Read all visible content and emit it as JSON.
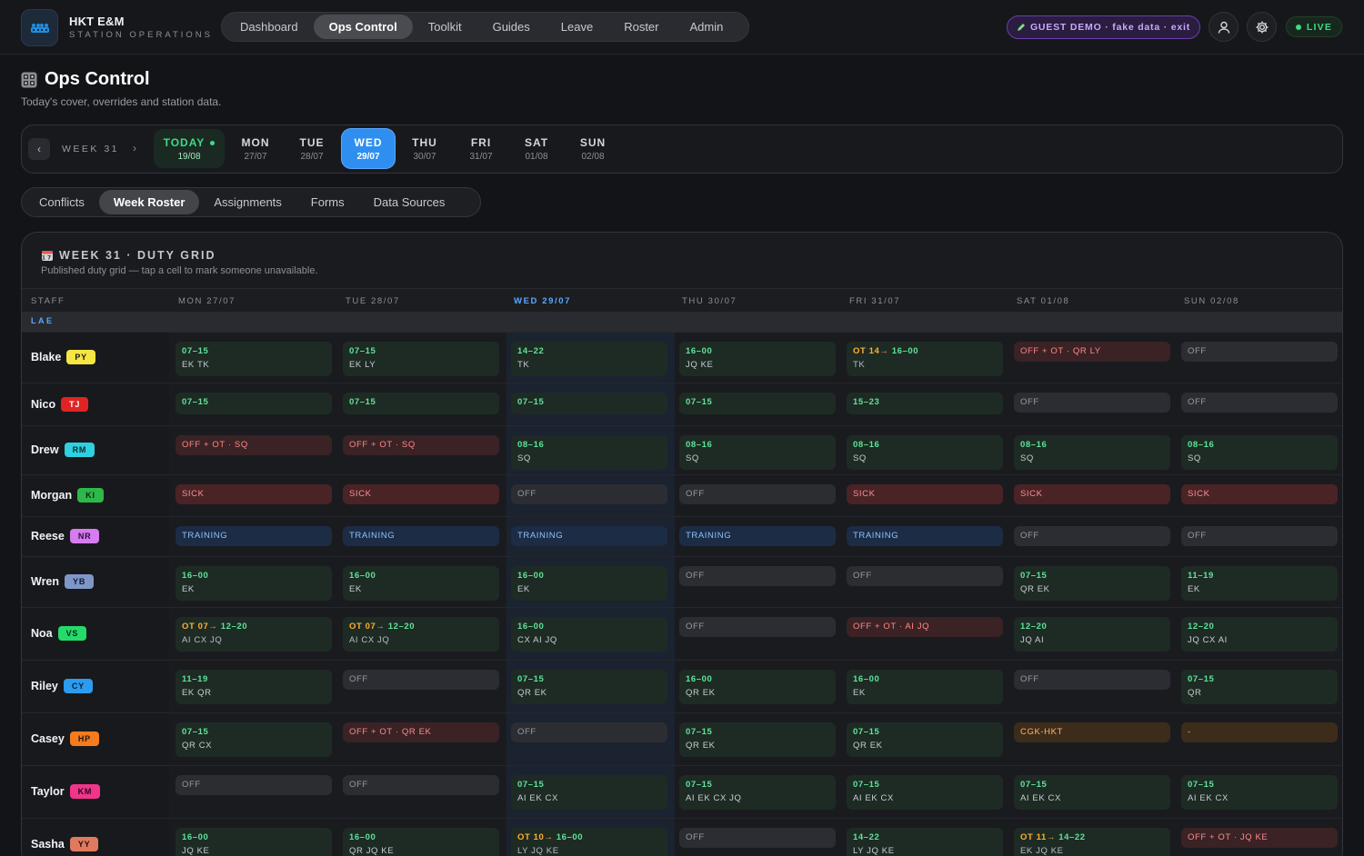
{
  "header": {
    "brand_title": "HKT E&M",
    "brand_sub": "STATION OPERATIONS",
    "nav": [
      "Dashboard",
      "Ops Control",
      "Toolkit",
      "Guides",
      "Leave",
      "Roster",
      "Admin"
    ],
    "guest_label": "GUEST DEMO · fake data · exit",
    "live_label": "LIVE"
  },
  "page": {
    "title": "Ops Control",
    "subtitle": "Today's cover, overrides and station data."
  },
  "week_strip": {
    "label": "WEEK 31",
    "prev": "‹",
    "next": "›",
    "days": [
      {
        "name": "TODAY",
        "date": "19/08"
      },
      {
        "name": "MON",
        "date": "27/07"
      },
      {
        "name": "TUE",
        "date": "28/07"
      },
      {
        "name": "WED",
        "date": "29/07"
      },
      {
        "name": "THU",
        "date": "30/07"
      },
      {
        "name": "FRI",
        "date": "31/07"
      },
      {
        "name": "SAT",
        "date": "01/08"
      },
      {
        "name": "SUN",
        "date": "02/08"
      }
    ]
  },
  "subtabs": [
    "Conflicts",
    "Week Roster",
    "Assignments",
    "Forms",
    "Data Sources"
  ],
  "grid": {
    "title": "WEEK 31 · DUTY GRID",
    "subtitle": "Published duty grid — tap a cell to mark someone unavailable.",
    "headers": [
      "STAFF",
      "MON 27/07",
      "TUE 28/07",
      "WED 29/07",
      "THU 30/07",
      "FRI 31/07",
      "SAT 01/08",
      "SUN 02/08"
    ],
    "group": "LAE",
    "rows": [
      {
        "name": "Blake",
        "code": "PY",
        "badge_bg": "#f5e642",
        "badge_fg": "#1a1a1a",
        "cells": [
          [
            "shift",
            "07–15",
            "EK TK"
          ],
          [
            "shift",
            "07–15",
            "EK LY"
          ],
          [
            "shift",
            "14–22",
            "TK"
          ],
          [
            "shift",
            "16–00",
            "JQ KE"
          ],
          [
            "ot",
            "OT 14→",
            "16–00",
            "TK"
          ],
          [
            "offot",
            "OFF + OT · QR LY",
            ""
          ],
          [
            "off",
            "OFF",
            ""
          ]
        ]
      },
      {
        "name": "Nico",
        "code": "TJ",
        "badge_bg": "#e02424",
        "badge_fg": "#ffffff",
        "cells": [
          [
            "shift",
            "07–15",
            ""
          ],
          [
            "shift",
            "07–15",
            ""
          ],
          [
            "shift",
            "07–15",
            ""
          ],
          [
            "shift",
            "07–15",
            ""
          ],
          [
            "shift",
            "15–23",
            ""
          ],
          [
            "off",
            "OFF",
            ""
          ],
          [
            "off",
            "OFF",
            ""
          ]
        ]
      },
      {
        "name": "Drew",
        "code": "RM",
        "badge_bg": "#2fd0e0",
        "badge_fg": "#0e2a2e",
        "cells": [
          [
            "offot",
            "OFF + OT · SQ",
            ""
          ],
          [
            "offot",
            "OFF + OT · SQ",
            ""
          ],
          [
            "shift",
            "08–16",
            "SQ"
          ],
          [
            "shift",
            "08–16",
            "SQ"
          ],
          [
            "shift",
            "08–16",
            "SQ"
          ],
          [
            "shift",
            "08–16",
            "SQ"
          ],
          [
            "shift",
            "08–16",
            "SQ"
          ]
        ]
      },
      {
        "name": "Morgan",
        "code": "KI",
        "badge_bg": "#2eb84a",
        "badge_fg": "#0d2a14",
        "cells": [
          [
            "sick",
            "SICK",
            ""
          ],
          [
            "sick",
            "SICK",
            ""
          ],
          [
            "off",
            "OFF",
            ""
          ],
          [
            "off",
            "OFF",
            ""
          ],
          [
            "sick",
            "SICK",
            ""
          ],
          [
            "sick",
            "SICK",
            ""
          ],
          [
            "sick",
            "SICK",
            ""
          ]
        ]
      },
      {
        "name": "Reese",
        "code": "NR",
        "badge_bg": "#d77bf0",
        "badge_fg": "#2a0f33",
        "cells": [
          [
            "training",
            "TRAINING",
            ""
          ],
          [
            "training",
            "TRAINING",
            ""
          ],
          [
            "training",
            "TRAINING",
            ""
          ],
          [
            "training",
            "TRAINING",
            ""
          ],
          [
            "training",
            "TRAINING",
            ""
          ],
          [
            "off",
            "OFF",
            ""
          ],
          [
            "off",
            "OFF",
            ""
          ]
        ]
      },
      {
        "name": "Wren",
        "code": "YB",
        "badge_bg": "#7f97c8",
        "badge_fg": "#0f1a33",
        "cells": [
          [
            "shift",
            "16–00",
            "EK"
          ],
          [
            "shift",
            "16–00",
            "EK"
          ],
          [
            "shift",
            "16–00",
            "EK"
          ],
          [
            "off",
            "OFF",
            ""
          ],
          [
            "off",
            "OFF",
            ""
          ],
          [
            "shift",
            "07–15",
            "QR EK"
          ],
          [
            "shift",
            "11–19",
            "EK"
          ]
        ]
      },
      {
        "name": "Noa",
        "code": "VS",
        "badge_bg": "#25d96b",
        "badge_fg": "#0b2a16",
        "cells": [
          [
            "ot",
            "OT 07→",
            "12–20",
            "AI CX JQ"
          ],
          [
            "ot",
            "OT 07→",
            "12–20",
            "AI CX JQ"
          ],
          [
            "shift",
            "16–00",
            "CX AI JQ"
          ],
          [
            "off",
            "OFF",
            ""
          ],
          [
            "offot",
            "OFF + OT · AI JQ",
            ""
          ],
          [
            "shift",
            "12–20",
            "JQ AI"
          ],
          [
            "shift",
            "12–20",
            "JQ CX AI"
          ]
        ]
      },
      {
        "name": "Riley",
        "code": "CY",
        "badge_bg": "#2b9cf0",
        "badge_fg": "#0b1e33",
        "cells": [
          [
            "shift",
            "11–19",
            "EK QR"
          ],
          [
            "off",
            "OFF",
            ""
          ],
          [
            "shift",
            "07–15",
            "QR EK"
          ],
          [
            "shift",
            "16–00",
            "QR EK"
          ],
          [
            "shift",
            "16–00",
            "EK"
          ],
          [
            "off",
            "OFF",
            ""
          ],
          [
            "shift",
            "07–15",
            "QR"
          ]
        ]
      },
      {
        "name": "Casey",
        "code": "HP",
        "badge_bg": "#f57b1e",
        "badge_fg": "#2a1505",
        "cells": [
          [
            "shift",
            "07–15",
            "QR CX"
          ],
          [
            "offot",
            "OFF + OT · QR EK",
            ""
          ],
          [
            "off",
            "OFF",
            ""
          ],
          [
            "shift",
            "07–15",
            "QR EK"
          ],
          [
            "shift",
            "07–15",
            "QR EK"
          ],
          [
            "travel",
            "CGK-HKT",
            ""
          ],
          [
            "dash",
            "-",
            ""
          ]
        ]
      },
      {
        "name": "Taylor",
        "code": "KM",
        "badge_bg": "#f0358a",
        "badge_fg": "#2a0818",
        "cells": [
          [
            "off",
            "OFF",
            ""
          ],
          [
            "off",
            "OFF",
            ""
          ],
          [
            "shift",
            "07–15",
            "AI EK CX"
          ],
          [
            "shift",
            "07–15",
            "AI EK CX JQ"
          ],
          [
            "shift",
            "07–15",
            "AI EK CX"
          ],
          [
            "shift",
            "07–15",
            "AI EK CX"
          ],
          [
            "shift",
            "07–15",
            "AI EK CX"
          ]
        ]
      },
      {
        "name": "Sasha",
        "code": "YY",
        "badge_bg": "#e07a5f",
        "badge_fg": "#2a1008",
        "cells": [
          [
            "shift",
            "16–00",
            "JQ KE"
          ],
          [
            "shift",
            "16–00",
            "QR JQ KE"
          ],
          [
            "ot",
            "OT 10→",
            "16–00",
            "LY JQ KE"
          ],
          [
            "off",
            "OFF",
            ""
          ],
          [
            "shift",
            "14–22",
            "LY JQ KE"
          ],
          [
            "ot",
            "OT 11→",
            "14–22",
            "EK JQ KE"
          ],
          [
            "offot",
            "OFF + OT · JQ KE",
            ""
          ]
        ]
      }
    ]
  },
  "colors": {
    "accent": "#2f8ff0",
    "live": "#3ddc84",
    "guest": "#c9a8ff"
  }
}
